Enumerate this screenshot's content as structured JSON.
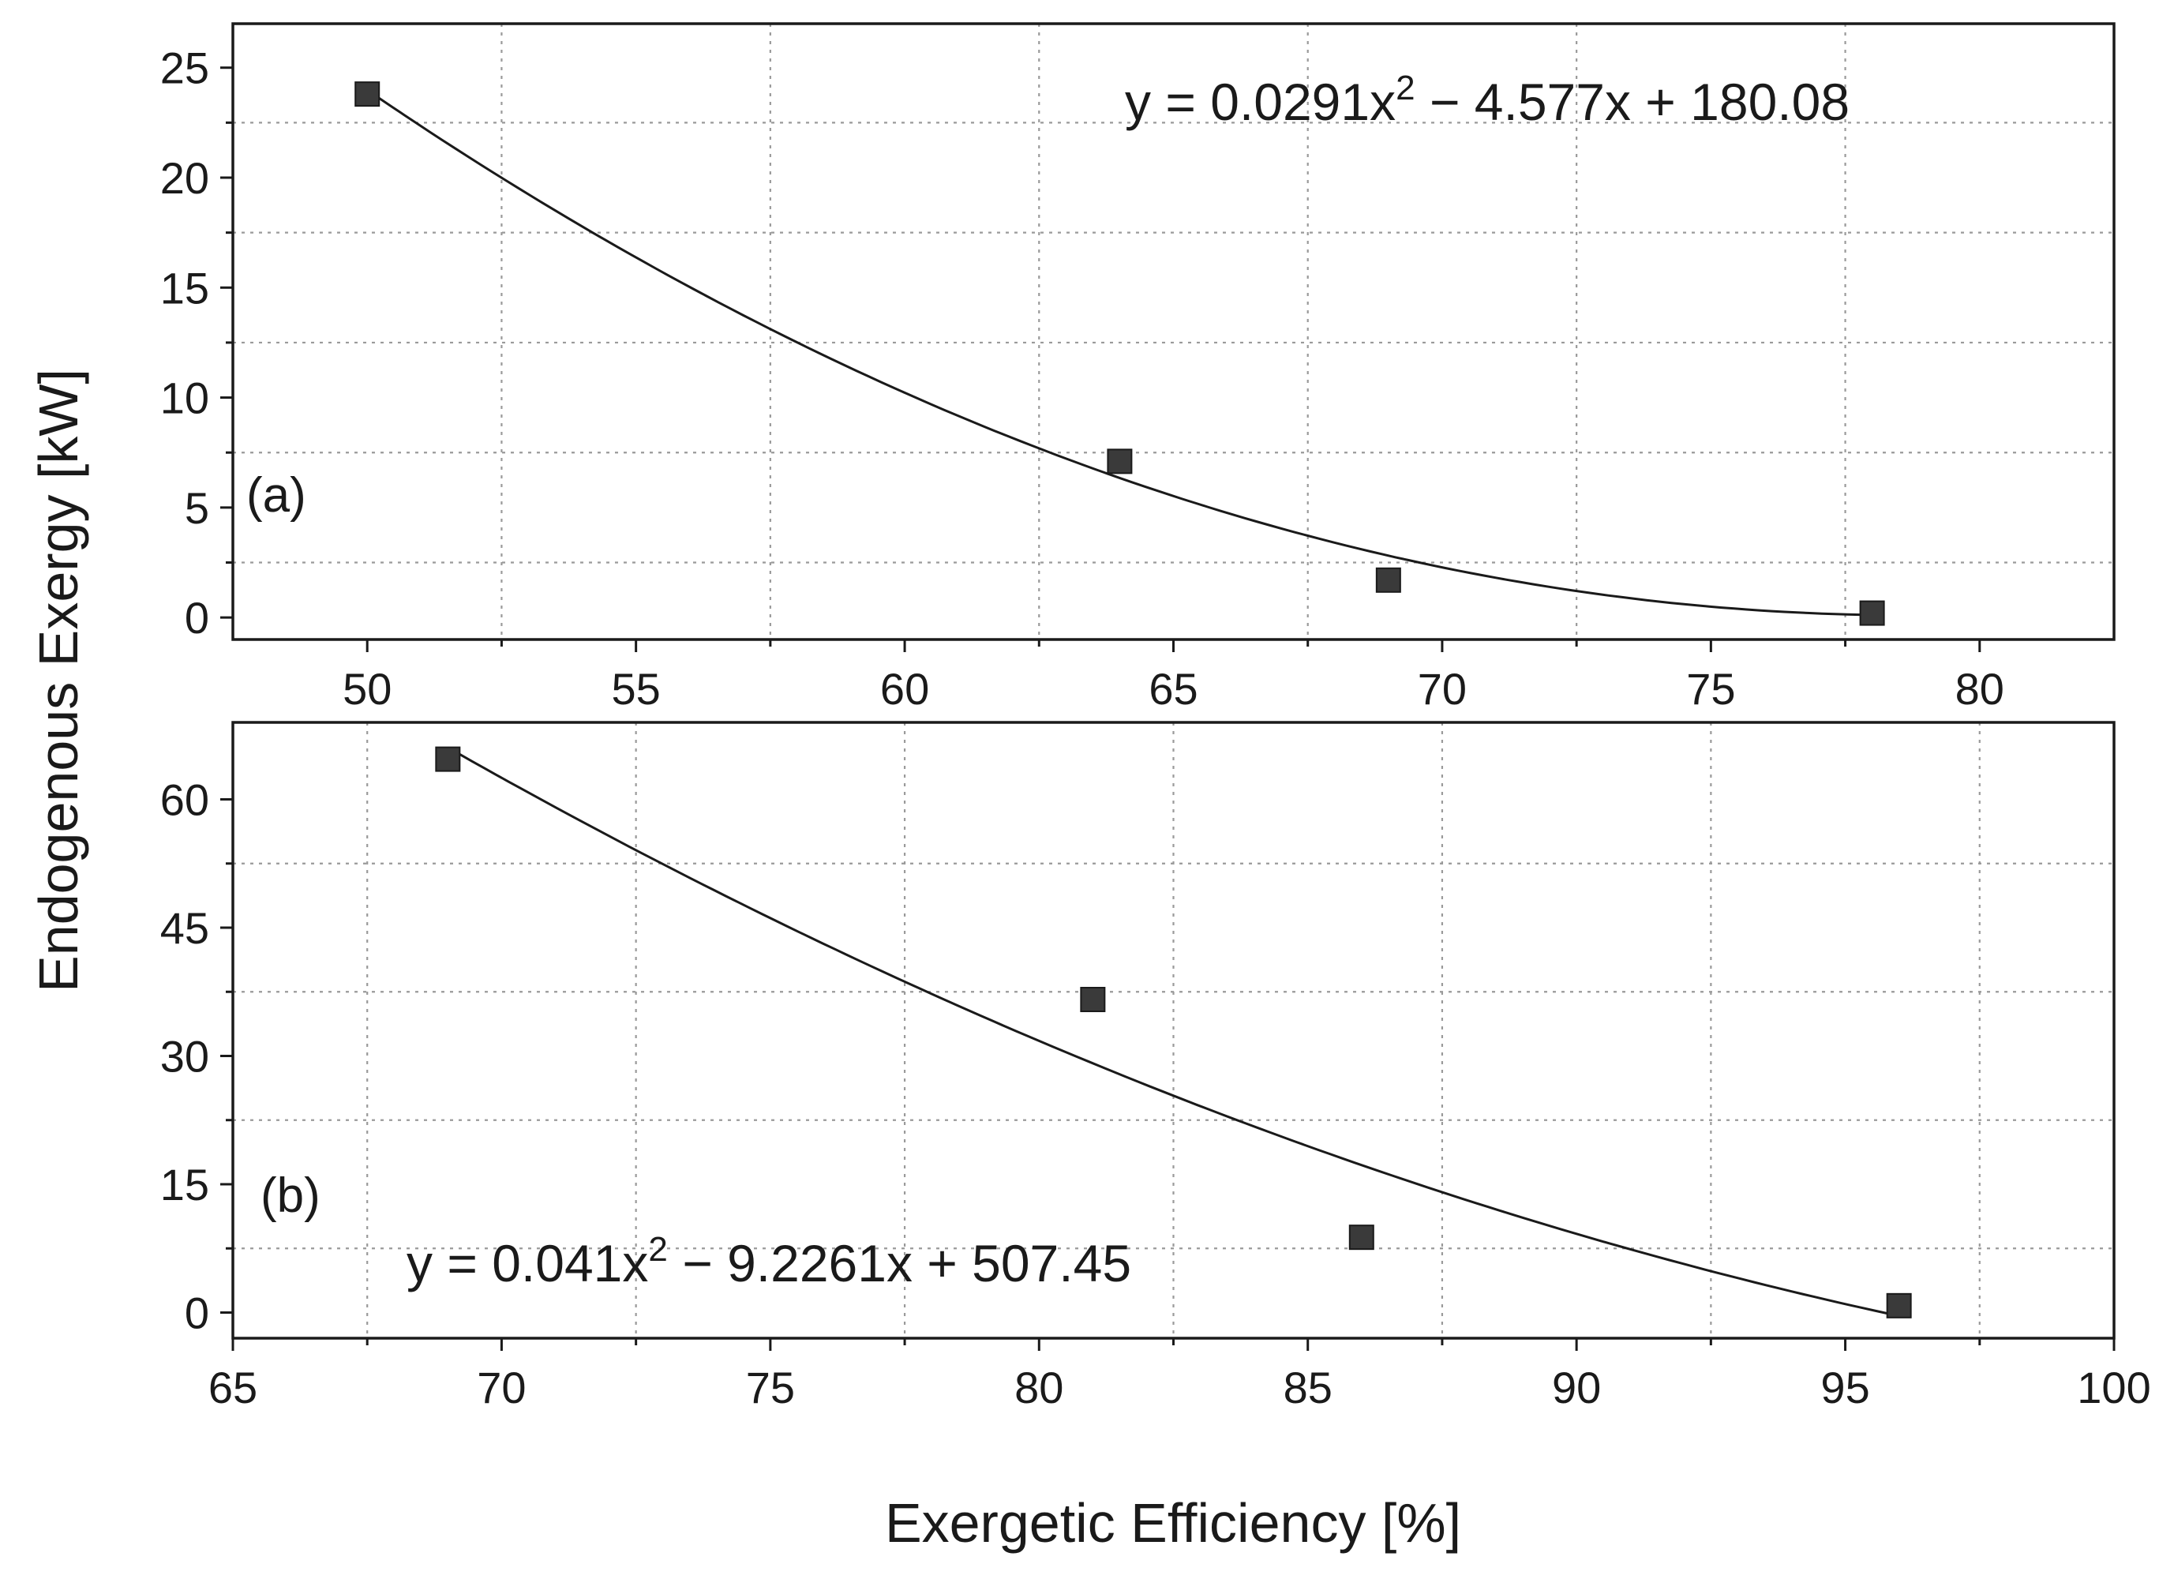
{
  "chart_data": {
    "shared": {
      "ylabel": "Endogenous Exergy [kW]",
      "xlabel": "Exergetic Efficiency [%]",
      "marker_color": "#3a3a3a",
      "line_color": "#1a1a1a"
    },
    "panels": [
      {
        "id": "a",
        "type": "scatter",
        "label": "(a)",
        "points": [
          {
            "x": 50,
            "y": 23.8
          },
          {
            "x": 64,
            "y": 7.1
          },
          {
            "x": 69,
            "y": 1.7
          },
          {
            "x": 78,
            "y": 0.2
          }
        ],
        "fit": {
          "type": "quadratic",
          "a": 0.0291,
          "b": -4.577,
          "c": 180.08,
          "from": 50,
          "to": 78
        },
        "equation": {
          "lead": "y = 0.0291x",
          "exp": "2",
          "tail": " − 4.577x + 180.08"
        },
        "xlim": [
          47.5,
          82.5
        ],
        "ylim": [
          -1,
          27
        ],
        "xticks": [
          50,
          55,
          60,
          65,
          70,
          75,
          80
        ],
        "xtick_labels": [
          "50",
          "55",
          "60",
          "65",
          "70",
          "75",
          "80"
        ],
        "xgrid": [
          52.5,
          57.5,
          62.5,
          67.5,
          72.5,
          77.5
        ],
        "yticks": [
          0,
          5,
          10,
          15,
          20,
          25
        ],
        "ytick_labels": [
          "0",
          "5",
          "10",
          "15",
          "20",
          "25"
        ],
        "ygrid": [
          2.5,
          7.5,
          12.5,
          17.5,
          22.5
        ]
      },
      {
        "id": "b",
        "type": "scatter",
        "label": "(b)",
        "points": [
          {
            "x": 69,
            "y": 64.7
          },
          {
            "x": 81,
            "y": 36.6
          },
          {
            "x": 86,
            "y": 8.8
          },
          {
            "x": 96,
            "y": 0.8
          }
        ],
        "fit": {
          "type": "quadratic",
          "a": 0.041,
          "b": -9.2261,
          "c": 507.45,
          "from": 69,
          "to": 96
        },
        "equation": {
          "lead": "y = 0.041x",
          "exp": "2",
          "tail": " − 9.2261x + 507.45"
        },
        "xlim": [
          65,
          100
        ],
        "ylim": [
          -3,
          69
        ],
        "xticks": [
          65,
          70,
          75,
          80,
          85,
          90,
          95,
          100
        ],
        "xtick_labels": [
          "65",
          "70",
          "75",
          "80",
          "85",
          "90",
          "95",
          "100"
        ],
        "xgrid": [
          67.5,
          72.5,
          77.5,
          82.5,
          87.5,
          92.5,
          97.5
        ],
        "yticks": [
          0,
          15,
          30,
          45,
          60
        ],
        "ytick_labels": [
          "0",
          "15",
          "30",
          "45",
          "60"
        ],
        "ygrid": [
          7.5,
          22.5,
          37.5,
          52.5
        ]
      }
    ]
  }
}
